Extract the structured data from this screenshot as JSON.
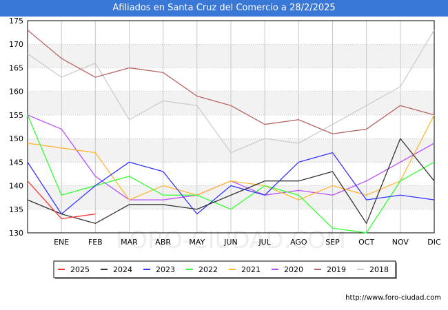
{
  "title": "Afiliados en Santa Cruz del Comercio a 28/2/2025",
  "watermark": "FORO-CIUDAD.COM",
  "footer_url": "http://www.foro-ciudad.com",
  "colors": {
    "title_bar": "#3a78d8",
    "band": "#f2f2f2",
    "grid": "#c8c8c8"
  },
  "chart_data": {
    "type": "line",
    "title": "Afiliados en Santa Cruz del Comercio a 28/2/2025",
    "xlabel": "",
    "ylabel": "",
    "categories": [
      "",
      "ENE",
      "FEB",
      "MAR",
      "ABR",
      "MAY",
      "JUN",
      "JUL",
      "AGO",
      "SEP",
      "OCT",
      "NOV",
      "DIC"
    ],
    "ylim": [
      130,
      175
    ],
    "yticks": [
      130,
      135,
      140,
      145,
      150,
      155,
      160,
      165,
      170,
      175
    ],
    "grid": true,
    "legend_position": "bottom",
    "series": [
      {
        "name": "2025",
        "color": "#ff3333",
        "values": [
          141,
          133,
          134,
          null,
          null,
          null,
          null,
          null,
          null,
          null,
          null,
          null,
          null
        ]
      },
      {
        "name": "2024",
        "color": "#333333",
        "values": [
          137,
          134,
          132,
          136,
          136,
          135,
          138,
          141,
          141,
          143,
          132,
          150,
          141
        ]
      },
      {
        "name": "2023",
        "color": "#3333ff",
        "values": [
          145,
          134,
          140,
          145,
          143,
          134,
          140,
          138,
          145,
          147,
          137,
          138,
          137
        ]
      },
      {
        "name": "2022",
        "color": "#33ff33",
        "values": [
          155,
          138,
          140,
          142,
          138,
          138,
          135,
          140,
          138,
          131,
          130,
          141,
          145
        ]
      },
      {
        "name": "2021",
        "color": "#ffb733",
        "values": [
          149,
          148,
          147,
          137,
          140,
          138,
          141,
          140,
          137,
          140,
          138,
          141,
          155
        ]
      },
      {
        "name": "2020",
        "color": "#b84dff",
        "values": [
          155,
          152,
          142,
          137,
          137,
          138,
          141,
          138,
          139,
          138,
          141,
          145,
          149
        ]
      },
      {
        "name": "2019",
        "color": "#b86464",
        "values": [
          173,
          167,
          163,
          165,
          164,
          159,
          157,
          153,
          154,
          151,
          152,
          157,
          155
        ]
      },
      {
        "name": "2018",
        "color": "#cccccc",
        "values": [
          168,
          163,
          166,
          154,
          158,
          157,
          147,
          150,
          149,
          153,
          157,
          161,
          173
        ]
      }
    ]
  }
}
